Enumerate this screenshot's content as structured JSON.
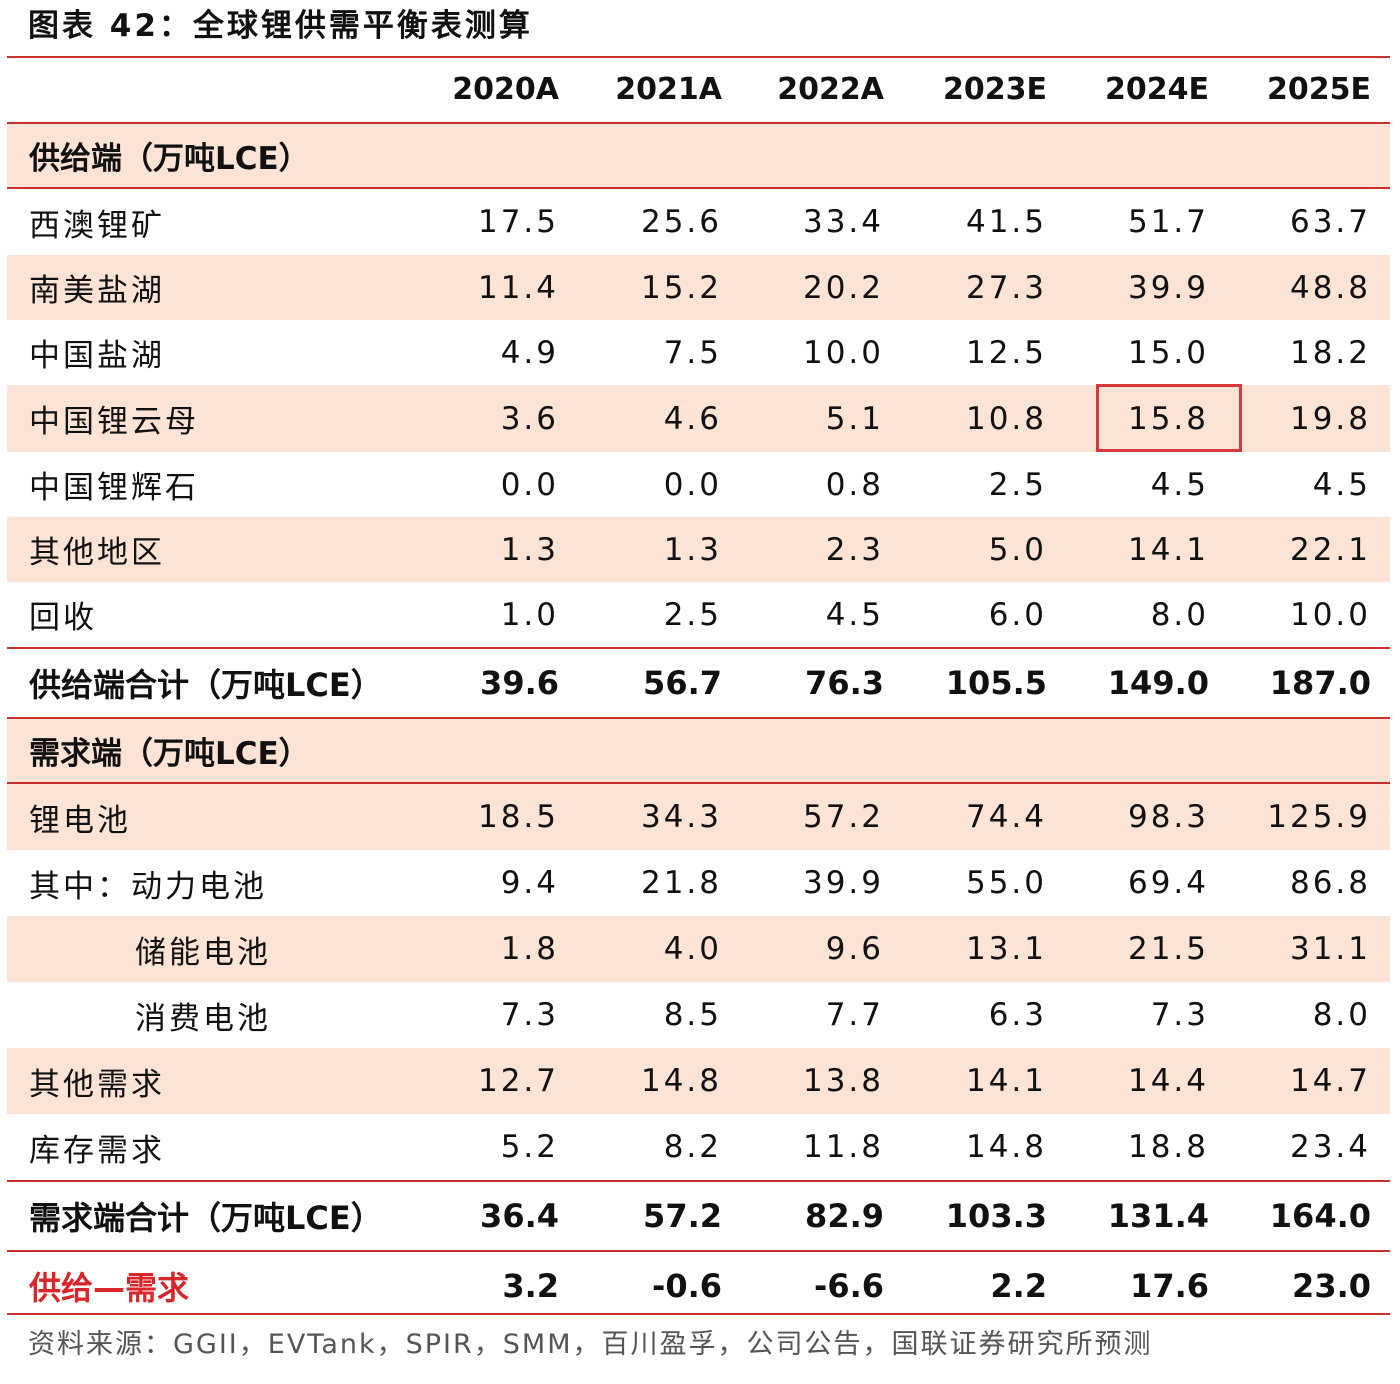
{
  "title": "图表 42：全球锂供需平衡表测算",
  "source": "资料来源：GGII，EVTank，SPIR，SMM，百川盈孚，公司公告，国联证券研究所预测",
  "chart_data": {
    "type": "table",
    "columns": [
      "2020A",
      "2021A",
      "2022A",
      "2023E",
      "2024E",
      "2025E"
    ],
    "highlighted_cell": {
      "row": "中国锂云母",
      "column": "2024E",
      "value": "15.8"
    },
    "rows": [
      {
        "label": "供给端（万吨LCE）",
        "kind": "section",
        "values": []
      },
      {
        "label": "西澳锂矿",
        "kind": "data",
        "values": [
          "17.5",
          "25.6",
          "33.4",
          "41.5",
          "51.7",
          "63.7"
        ]
      },
      {
        "label": "南美盐湖",
        "kind": "data",
        "values": [
          "11.4",
          "15.2",
          "20.2",
          "27.3",
          "39.9",
          "48.8"
        ]
      },
      {
        "label": "中国盐湖",
        "kind": "data",
        "values": [
          "4.9",
          "7.5",
          "10.0",
          "12.5",
          "15.0",
          "18.2"
        ]
      },
      {
        "label": "中国锂云母",
        "kind": "data",
        "values": [
          "3.6",
          "4.6",
          "5.1",
          "10.8",
          "15.8",
          "19.8"
        ]
      },
      {
        "label": "中国锂辉石",
        "kind": "data",
        "values": [
          "0.0",
          "0.0",
          "0.8",
          "2.5",
          "4.5",
          "4.5"
        ]
      },
      {
        "label": "其他地区",
        "kind": "data",
        "values": [
          "1.3",
          "1.3",
          "2.3",
          "5.0",
          "14.1",
          "22.1"
        ]
      },
      {
        "label": "回收",
        "kind": "data",
        "values": [
          "1.0",
          "2.5",
          "4.5",
          "6.0",
          "8.0",
          "10.0"
        ]
      },
      {
        "label": "供给端合计（万吨LCE）",
        "kind": "total",
        "values": [
          "39.6",
          "56.7",
          "76.3",
          "105.5",
          "149.0",
          "187.0"
        ]
      },
      {
        "label": "需求端（万吨LCE）",
        "kind": "section",
        "values": []
      },
      {
        "label": "锂电池",
        "kind": "data",
        "values": [
          "18.5",
          "34.3",
          "57.2",
          "74.4",
          "98.3",
          "125.9"
        ]
      },
      {
        "label": "其中：动力电池",
        "kind": "data",
        "values": [
          "9.4",
          "21.8",
          "39.9",
          "55.0",
          "69.4",
          "86.8"
        ]
      },
      {
        "label": "储能电池",
        "kind": "data",
        "indent": 2,
        "values": [
          "1.8",
          "4.0",
          "9.6",
          "13.1",
          "21.5",
          "31.1"
        ]
      },
      {
        "label": "消费电池",
        "kind": "data",
        "indent": 2,
        "values": [
          "7.3",
          "8.5",
          "7.7",
          "6.3",
          "7.3",
          "8.0"
        ]
      },
      {
        "label": "其他需求",
        "kind": "data",
        "values": [
          "12.7",
          "14.8",
          "13.8",
          "14.1",
          "14.4",
          "14.7"
        ]
      },
      {
        "label": "库存需求",
        "kind": "data",
        "values": [
          "5.2",
          "8.2",
          "11.8",
          "14.8",
          "18.8",
          "23.4"
        ]
      },
      {
        "label": "需求端合计（万吨LCE）",
        "kind": "total",
        "values": [
          "36.4",
          "57.2",
          "82.9",
          "103.3",
          "131.4",
          "164.0"
        ]
      },
      {
        "label": "供给—需求",
        "kind": "balance",
        "values": [
          "3.2",
          "-0.6",
          "-6.6",
          "2.2",
          "17.6",
          "23.0"
        ]
      }
    ]
  },
  "colors": {
    "accent_red": "#d8262a",
    "rule_red": "#c9302c",
    "row_shade": "#fbe3d6"
  }
}
